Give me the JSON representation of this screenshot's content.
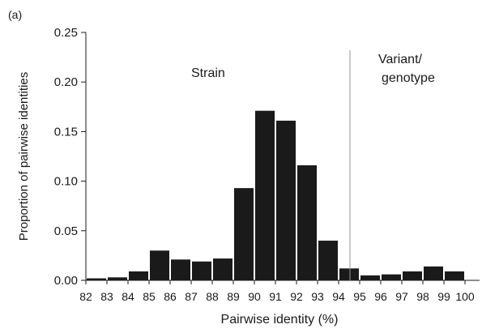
{
  "chart_data": {
    "type": "bar",
    "panel_label": "(a)",
    "title": "",
    "xlabel": "Pairwise identity (%)",
    "ylabel": "Proportion of pairwise identities",
    "ylim": [
      0,
      0.25
    ],
    "y_ticks": [
      "0.00",
      "0.05",
      "0.10",
      "0.15",
      "0.20",
      "0.25"
    ],
    "categories": [
      "82",
      "83",
      "84",
      "85",
      "86",
      "87",
      "88",
      "89",
      "90",
      "91",
      "92",
      "93",
      "94",
      "95",
      "96",
      "97",
      "98",
      "99",
      "100"
    ],
    "values": [
      0.0,
      0.002,
      0.003,
      0.009,
      0.03,
      0.021,
      0.019,
      0.022,
      0.093,
      0.171,
      0.161,
      0.116,
      0.04,
      0.012,
      0.005,
      0.006,
      0.009,
      0.014,
      0.009
    ],
    "divider_x": 95,
    "annotations": {
      "strain": "Strain",
      "variant_line1": "Variant/",
      "variant_line2": "genotype"
    },
    "bar_color": "#1a1a1a",
    "grid": false
  }
}
